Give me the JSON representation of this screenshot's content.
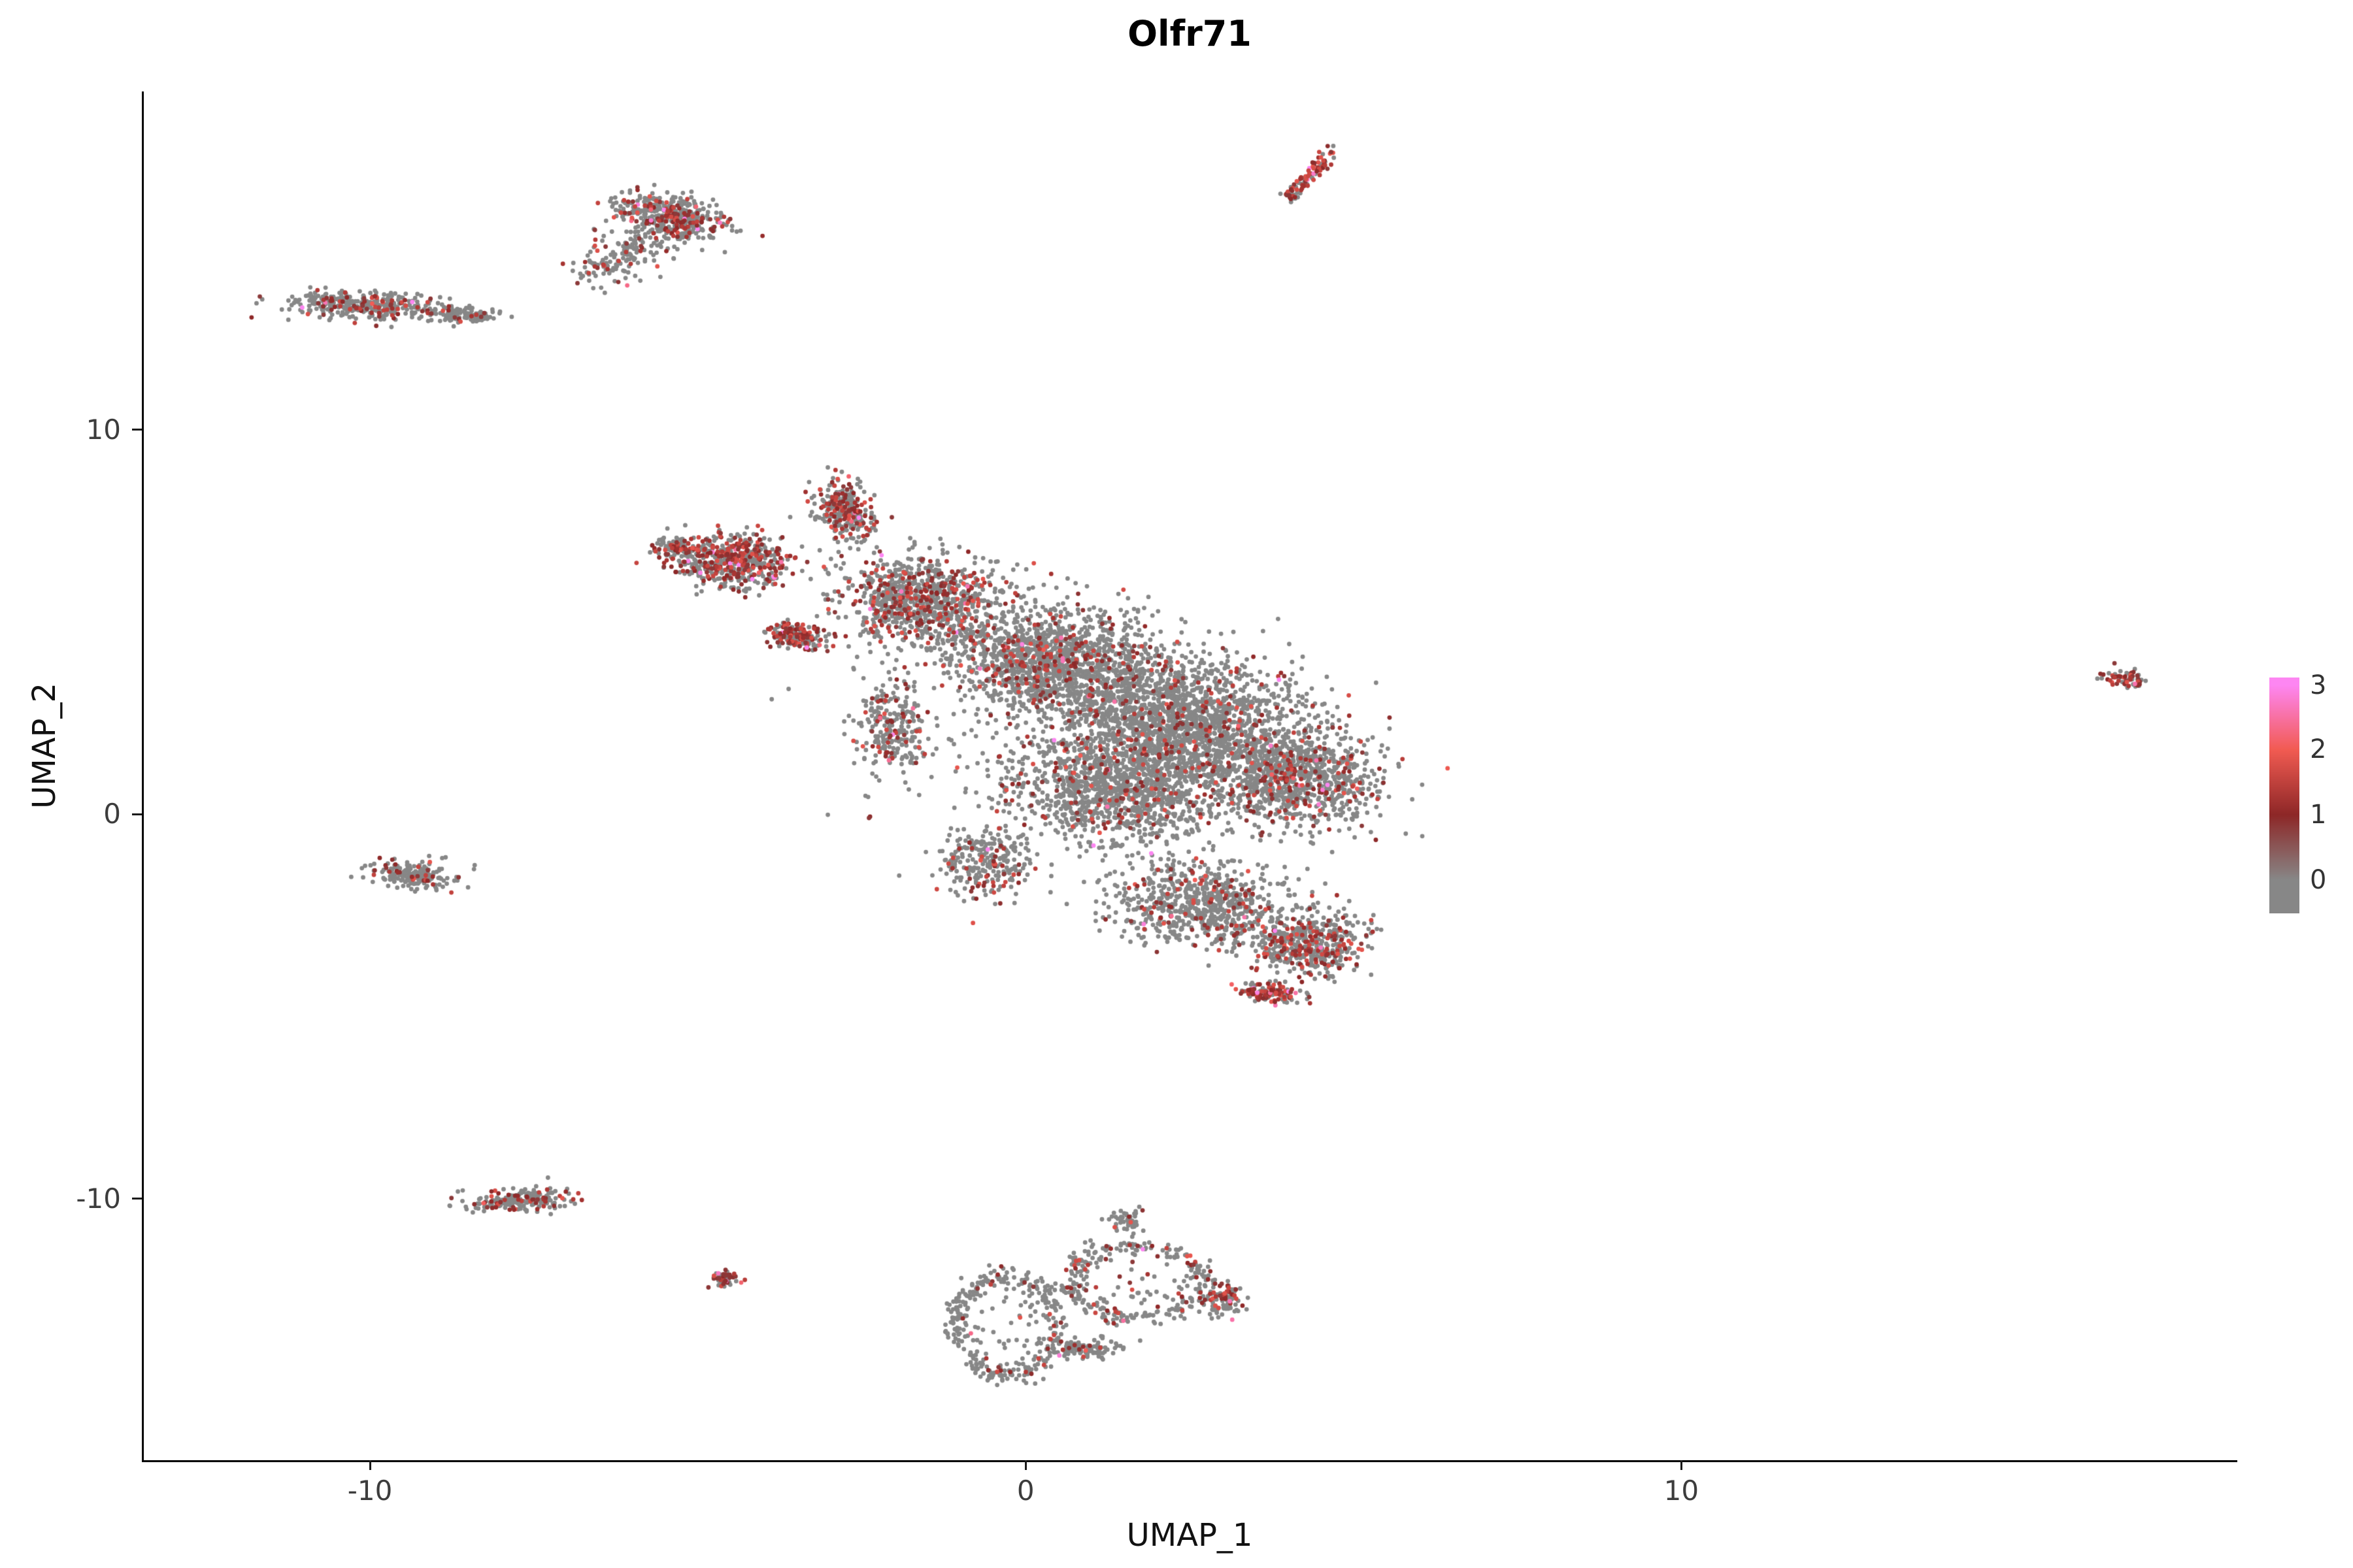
{
  "chart_data": {
    "type": "scatter",
    "title": "Olfr71",
    "xlabel": "UMAP_1",
    "ylabel": "UMAP_2",
    "xlim": [
      -13.45,
      18.45
    ],
    "ylim": [
      -16.8,
      18.8
    ],
    "x_ticks": [
      -10,
      0,
      10
    ],
    "y_ticks": [
      -10,
      0,
      10
    ],
    "grid": "off",
    "legend_position": "right",
    "point_radius_px": 3.4,
    "background": "#ffffff",
    "color_scale": {
      "values": [
        0,
        1,
        2,
        3
      ],
      "colors": [
        "#878787",
        "#8D2727",
        "#F25B52",
        "#FD86F2"
      ],
      "tick_labels_top_to_bottom": [
        "3",
        "2",
        "1",
        "0"
      ]
    },
    "clusters": [
      {
        "name": "top-left-band",
        "shape": "blob",
        "cx": -10.2,
        "cy": 13.25,
        "rx": 1.15,
        "ry": 0.38,
        "angle": -4,
        "n": 360,
        "expr": 0.18
      },
      {
        "name": "top-left-band-tail",
        "shape": "blob",
        "cx": -8.6,
        "cy": 13.0,
        "rx": 0.6,
        "ry": 0.25,
        "angle": -10,
        "n": 110,
        "expr": 0.06
      },
      {
        "name": "upper-comma",
        "shape": "blob",
        "cx": -5.4,
        "cy": 15.55,
        "rx": 0.9,
        "ry": 0.5,
        "angle": -22,
        "n": 430,
        "expr": 0.22
      },
      {
        "name": "upper-comma-tail",
        "shape": "streak",
        "x1": -6.6,
        "y1": 13.95,
        "x2": -5.7,
        "y2": 15.1,
        "w": 0.25,
        "n": 170,
        "expr": 0.12
      },
      {
        "name": "top-right-streak",
        "shape": "streak",
        "x1": 3.98,
        "y1": 16.0,
        "x2": 4.72,
        "y2": 17.3,
        "w": 0.07,
        "n": 95,
        "expr": 0.75
      },
      {
        "name": "red-wedge",
        "shape": "blob",
        "cx": -4.5,
        "cy": 6.6,
        "rx": 0.85,
        "ry": 0.7,
        "angle": -5,
        "n": 560,
        "expr": 0.45
      },
      {
        "name": "red-wedge-tip",
        "shape": "blob",
        "cx": -5.35,
        "cy": 6.95,
        "rx": 0.3,
        "ry": 0.28,
        "angle": 0,
        "n": 80,
        "expr": 0.35
      },
      {
        "name": "red-patch",
        "shape": "blob",
        "cx": -3.5,
        "cy": 4.6,
        "rx": 0.45,
        "ry": 0.3,
        "angle": -25,
        "n": 170,
        "expr": 0.5
      },
      {
        "name": "north-spur",
        "shape": "blob",
        "cx": -2.75,
        "cy": 7.9,
        "rx": 0.45,
        "ry": 0.85,
        "angle": 12,
        "n": 290,
        "expr": 0.3
      },
      {
        "name": "main-upper-left",
        "shape": "blob",
        "cx": -1.6,
        "cy": 5.6,
        "rx": 1.15,
        "ry": 1.1,
        "angle": 0,
        "n": 900,
        "expr": 0.28
      },
      {
        "name": "main-upper-mid",
        "shape": "blob",
        "cx": 0.4,
        "cy": 4.0,
        "rx": 1.7,
        "ry": 1.4,
        "angle": -20,
        "n": 1500,
        "expr": 0.13
      },
      {
        "name": "main-center",
        "shape": "blob",
        "cx": 2.4,
        "cy": 2.4,
        "rx": 1.9,
        "ry": 1.6,
        "angle": -20,
        "n": 1750,
        "expr": 0.1
      },
      {
        "name": "main-right",
        "shape": "blob",
        "cx": 4.1,
        "cy": 0.9,
        "rx": 1.3,
        "ry": 1.2,
        "angle": -15,
        "n": 950,
        "expr": 0.15
      },
      {
        "name": "main-lower-mid",
        "shape": "blob",
        "cx": 1.4,
        "cy": 0.6,
        "rx": 1.7,
        "ry": 1.4,
        "angle": 0,
        "n": 1150,
        "expr": 0.12
      },
      {
        "name": "main-left-column",
        "shape": "blob",
        "cx": -2.05,
        "cy": 2.3,
        "rx": 0.5,
        "ry": 1.25,
        "angle": 5,
        "n": 260,
        "expr": 0.22
      },
      {
        "name": "main-left-tail",
        "shape": "blob",
        "cx": -0.6,
        "cy": -1.2,
        "rx": 0.7,
        "ry": 1.0,
        "angle": 0,
        "n": 260,
        "expr": 0.12
      },
      {
        "name": "lower-lobe",
        "shape": "blob",
        "cx": 2.7,
        "cy": -2.4,
        "rx": 1.4,
        "ry": 1.1,
        "angle": -10,
        "n": 760,
        "expr": 0.12
      },
      {
        "name": "lower-right-lobe",
        "shape": "blob",
        "cx": 4.4,
        "cy": -3.4,
        "rx": 0.85,
        "ry": 0.85,
        "angle": 0,
        "n": 480,
        "expr": 0.28
      },
      {
        "name": "lower-edge-red",
        "shape": "blob",
        "cx": 3.75,
        "cy": -4.65,
        "rx": 0.5,
        "ry": 0.25,
        "angle": -10,
        "n": 130,
        "expr": 0.5
      },
      {
        "name": "halo",
        "shape": "blob",
        "cx": 1.0,
        "cy": 1.8,
        "rx": 3.6,
        "ry": 3.4,
        "angle": -15,
        "n": 150,
        "expr": 0.08
      },
      {
        "name": "left-mid-island",
        "shape": "blob",
        "cx": -9.35,
        "cy": -1.55,
        "rx": 0.65,
        "ry": 0.4,
        "angle": -8,
        "n": 190,
        "expr": 0.15
      },
      {
        "name": "bottom-left-island",
        "shape": "blob",
        "cx": -7.7,
        "cy": -10.05,
        "rx": 0.8,
        "ry": 0.3,
        "angle": 8,
        "n": 210,
        "expr": 0.2
      },
      {
        "name": "tiny-red-island",
        "shape": "blob",
        "cx": -4.6,
        "cy": -12.05,
        "rx": 0.22,
        "ry": 0.2,
        "angle": 0,
        "n": 55,
        "expr": 0.45
      },
      {
        "name": "bottom-ring-left",
        "shape": "ring",
        "cx": -0.3,
        "cy": -13.3,
        "rx": 0.78,
        "ry": 1.25,
        "angle": 0,
        "n": 330,
        "expr": 0.08
      },
      {
        "name": "bottom-ring-right",
        "shape": "ring",
        "cx": 1.7,
        "cy": -12.15,
        "rx": 1.0,
        "ry": 0.95,
        "angle": 0,
        "n": 310,
        "expr": 0.2
      },
      {
        "name": "bottom-bridge",
        "shape": "blob",
        "cx": 0.9,
        "cy": -13.9,
        "rx": 0.55,
        "ry": 0.28,
        "angle": 0,
        "n": 120,
        "expr": 0.1
      },
      {
        "name": "bottom-right-tail",
        "shape": "blob",
        "cx": 3.0,
        "cy": -12.6,
        "rx": 0.3,
        "ry": 0.45,
        "angle": 0,
        "n": 100,
        "expr": 0.3
      },
      {
        "name": "bottom-bump",
        "shape": "blob",
        "cx": 1.55,
        "cy": -10.55,
        "rx": 0.25,
        "ry": 0.3,
        "angle": 0,
        "n": 55,
        "expr": 0.1
      },
      {
        "name": "far-right-island",
        "shape": "blob",
        "cx": 16.75,
        "cy": 3.55,
        "rx": 0.3,
        "ry": 0.2,
        "angle": -25,
        "n": 65,
        "expr": 0.5
      }
    ]
  }
}
